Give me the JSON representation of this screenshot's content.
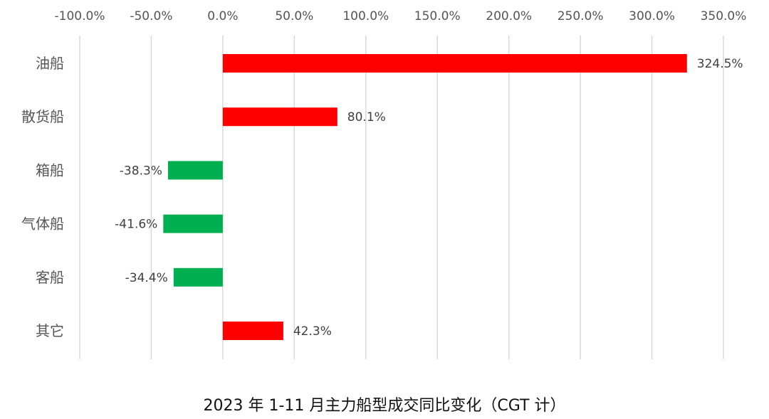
{
  "chart_data": {
    "type": "bar",
    "orientation": "horizontal",
    "title": "2023 年 1-11 月主力船型成交同比变化（CGT 计）",
    "xlim": [
      -100,
      350
    ],
    "x_ticks": [
      -100,
      -50,
      0,
      50,
      100,
      150,
      200,
      250,
      300,
      350
    ],
    "x_tick_labels": [
      "-100.0%",
      "-50.0%",
      "0.0%",
      "50.0%",
      "100.0%",
      "150.0%",
      "200.0%",
      "250.0%",
      "300.0%",
      "350.0%"
    ],
    "x_axis_position": "top",
    "grid": true,
    "categories": [
      "油船",
      "散货船",
      "箱船",
      "气体船",
      "客船",
      "其它"
    ],
    "values": [
      324.5,
      80.1,
      -38.3,
      -41.6,
      -34.4,
      42.3
    ],
    "value_labels": [
      "324.5%",
      "80.1%",
      "-38.3%",
      "-41.6%",
      "-34.4%",
      "42.3%"
    ],
    "unit": "%",
    "colors": {
      "positive": "#ff0000",
      "negative": "#00b050"
    }
  }
}
